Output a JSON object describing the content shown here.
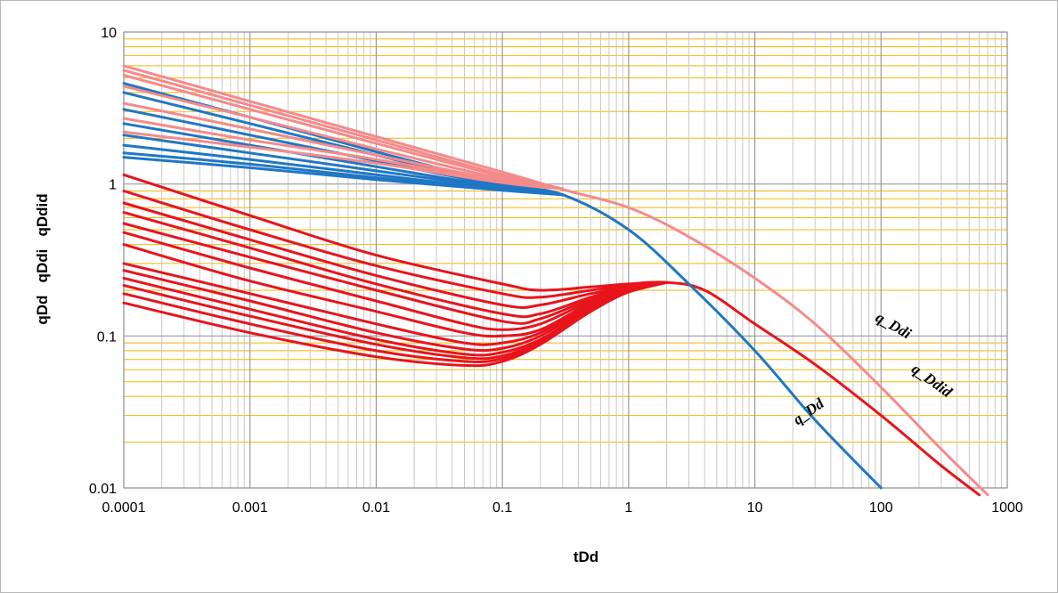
{
  "chart_data": {
    "type": "line",
    "title": "",
    "xlabel": "tDd",
    "ylabel": "qDd   qDdi   qDdid",
    "xscale": "log",
    "yscale": "log",
    "xlim": [
      0.0001,
      1000
    ],
    "ylim": [
      0.01,
      10
    ],
    "grid": true,
    "legend": "none",
    "x_tick_labels": [
      "0.0001",
      "0.001",
      "0.01",
      "0.1",
      "1",
      "10",
      "100",
      "1000"
    ],
    "y_tick_labels": [
      "0.01",
      "0.1",
      "1",
      "10"
    ],
    "annotations": [
      {
        "text": "q_Ddi",
        "x": 120,
        "y": 0.11
      },
      {
        "text": "q_Ddid",
        "x": 240,
        "y": 0.048
      },
      {
        "text": "q_Dd",
        "x": 28,
        "y": 0.03
      }
    ],
    "colors": {
      "q_Dd": "#1f77c4",
      "q_Ddi": "#f58a8a",
      "q_Ddid": "#e8141c",
      "grid_major": "#9a9a9a",
      "grid_minor_x": "#c8c8c8",
      "grid_minor_y": "#f2b800"
    },
    "series": [
      {
        "group": "q_Ddi",
        "x": [
          0.0001,
          0.001,
          0.01,
          0.1,
          0.3,
          1,
          3,
          10,
          30,
          100,
          300,
          700
        ],
        "y": [
          6.0,
          3.5,
          2.05,
          1.2,
          0.92,
          0.7,
          0.45,
          0.24,
          0.12,
          0.046,
          0.018,
          0.009
        ]
      },
      {
        "group": "q_Ddi",
        "x": [
          0.0001,
          0.001,
          0.01,
          0.1,
          0.3
        ],
        "y": [
          5.6,
          3.3,
          1.95,
          1.15,
          0.93
        ]
      },
      {
        "group": "q_Ddi",
        "x": [
          0.0001,
          0.001,
          0.01,
          0.1,
          0.3
        ],
        "y": [
          5.2,
          3.1,
          1.85,
          1.12,
          0.93
        ]
      },
      {
        "group": "q_Ddi",
        "x": [
          0.0001,
          0.001,
          0.01,
          0.1,
          0.3
        ],
        "y": [
          4.4,
          2.75,
          1.7,
          1.08,
          0.93
        ]
      },
      {
        "group": "q_Ddi",
        "x": [
          0.0001,
          0.001,
          0.01,
          0.1,
          0.3
        ],
        "y": [
          3.4,
          2.3,
          1.55,
          1.05,
          0.93
        ]
      },
      {
        "group": "q_Ddi",
        "x": [
          0.0001,
          0.001,
          0.01,
          0.1,
          0.3
        ],
        "y": [
          2.7,
          1.95,
          1.45,
          1.03,
          0.93
        ]
      },
      {
        "group": "q_Ddi",
        "x": [
          0.0001,
          0.001,
          0.01,
          0.1,
          0.3
        ],
        "y": [
          2.2,
          1.75,
          1.37,
          1.02,
          0.93
        ]
      },
      {
        "group": "q_Dd",
        "x": [
          0.0001,
          0.001,
          0.01,
          0.1,
          0.3,
          1,
          3,
          10,
          30,
          100
        ],
        "y": [
          4.6,
          2.75,
          1.63,
          1.0,
          0.85,
          0.5,
          0.22,
          0.08,
          0.028,
          0.01
        ]
      },
      {
        "group": "q_Dd",
        "x": [
          0.0001,
          0.001,
          0.01,
          0.1,
          0.3
        ],
        "y": [
          4.0,
          2.5,
          1.55,
          0.98,
          0.85
        ]
      },
      {
        "group": "q_Dd",
        "x": [
          0.0001,
          0.001,
          0.01,
          0.1,
          0.3
        ],
        "y": [
          3.1,
          2.1,
          1.42,
          0.97,
          0.85
        ]
      },
      {
        "group": "q_Dd",
        "x": [
          0.0001,
          0.001,
          0.01,
          0.1,
          0.3
        ],
        "y": [
          2.5,
          1.8,
          1.3,
          0.95,
          0.85
        ]
      },
      {
        "group": "q_Dd",
        "x": [
          0.0001,
          0.001,
          0.01,
          0.1,
          0.3
        ],
        "y": [
          2.1,
          1.6,
          1.22,
          0.94,
          0.85
        ]
      },
      {
        "group": "q_Dd",
        "x": [
          0.0001,
          0.001,
          0.01,
          0.1,
          0.3
        ],
        "y": [
          1.8,
          1.45,
          1.15,
          0.92,
          0.85
        ]
      },
      {
        "group": "q_Dd",
        "x": [
          0.0001,
          0.001,
          0.01,
          0.1,
          0.3
        ],
        "y": [
          1.6,
          1.35,
          1.1,
          0.92,
          0.85
        ]
      },
      {
        "group": "q_Dd",
        "x": [
          0.0001,
          0.001,
          0.01,
          0.1,
          0.3
        ],
        "y": [
          1.5,
          1.28,
          1.07,
          0.91,
          0.85
        ]
      },
      {
        "group": "q_Ddid",
        "x": [
          0.0001,
          0.001,
          0.01,
          0.1,
          0.2,
          0.5,
          1,
          2,
          4,
          10,
          30,
          100,
          300,
          600
        ],
        "y": [
          1.15,
          0.62,
          0.34,
          0.22,
          0.2,
          0.21,
          0.22,
          0.225,
          0.2,
          0.12,
          0.065,
          0.03,
          0.014,
          0.009
        ]
      },
      {
        "group": "q_Ddid",
        "x": [
          0.0001,
          0.001,
          0.01,
          0.1,
          0.2,
          0.5,
          1,
          2
        ],
        "y": [
          0.9,
          0.5,
          0.29,
          0.19,
          0.18,
          0.2,
          0.215,
          0.225
        ]
      },
      {
        "group": "q_Ddid",
        "x": [
          0.0001,
          0.001,
          0.01,
          0.1,
          0.2,
          0.5,
          1,
          2
        ],
        "y": [
          0.75,
          0.43,
          0.25,
          0.16,
          0.16,
          0.19,
          0.21,
          0.225
        ]
      },
      {
        "group": "q_Ddid",
        "x": [
          0.0001,
          0.001,
          0.01,
          0.1,
          0.2,
          0.5,
          1,
          2
        ],
        "y": [
          0.65,
          0.38,
          0.22,
          0.14,
          0.14,
          0.18,
          0.21,
          0.225
        ]
      },
      {
        "group": "q_Ddid",
        "x": [
          0.0001,
          0.001,
          0.01,
          0.1,
          0.2,
          0.5,
          1,
          2
        ],
        "y": [
          0.55,
          0.33,
          0.2,
          0.125,
          0.13,
          0.175,
          0.205,
          0.225
        ]
      },
      {
        "group": "q_Ddid",
        "x": [
          0.0001,
          0.001,
          0.01,
          0.05,
          0.1,
          0.2,
          0.5,
          1,
          2
        ],
        "y": [
          0.48,
          0.28,
          0.17,
          0.12,
          0.11,
          0.12,
          0.17,
          0.205,
          0.225
        ]
      },
      {
        "group": "q_Ddid",
        "x": [
          0.0001,
          0.001,
          0.01,
          0.05,
          0.1,
          0.2,
          0.5,
          1,
          2
        ],
        "y": [
          0.4,
          0.23,
          0.145,
          0.105,
          0.1,
          0.11,
          0.165,
          0.2,
          0.225
        ]
      },
      {
        "group": "q_Ddid",
        "x": [
          0.0001,
          0.001,
          0.01,
          0.05,
          0.1,
          0.2,
          0.5,
          1,
          2
        ],
        "y": [
          0.3,
          0.19,
          0.12,
          0.09,
          0.09,
          0.105,
          0.16,
          0.2,
          0.225
        ]
      },
      {
        "group": "q_Ddid",
        "x": [
          0.0001,
          0.001,
          0.01,
          0.05,
          0.1,
          0.2,
          0.5,
          1,
          2
        ],
        "y": [
          0.27,
          0.17,
          0.105,
          0.082,
          0.083,
          0.1,
          0.155,
          0.195,
          0.225
        ]
      },
      {
        "group": "q_Ddid",
        "x": [
          0.0001,
          0.001,
          0.01,
          0.05,
          0.1,
          0.2,
          0.5,
          1,
          2
        ],
        "y": [
          0.24,
          0.15,
          0.095,
          0.076,
          0.078,
          0.095,
          0.15,
          0.195,
          0.225
        ]
      },
      {
        "group": "q_Ddid",
        "x": [
          0.0001,
          0.001,
          0.01,
          0.05,
          0.1,
          0.2,
          0.5,
          1,
          2
        ],
        "y": [
          0.215,
          0.135,
          0.088,
          0.072,
          0.074,
          0.092,
          0.15,
          0.195,
          0.225
        ]
      },
      {
        "group": "q_Ddid",
        "x": [
          0.0001,
          0.001,
          0.01,
          0.05,
          0.1,
          0.2,
          0.5,
          1,
          2
        ],
        "y": [
          0.19,
          0.12,
          0.08,
          0.068,
          0.071,
          0.09,
          0.145,
          0.195,
          0.225
        ]
      },
      {
        "group": "q_Ddid",
        "x": [
          0.0001,
          0.001,
          0.01,
          0.05,
          0.1,
          0.2,
          0.5,
          1,
          2
        ],
        "y": [
          0.165,
          0.105,
          0.073,
          0.064,
          0.068,
          0.088,
          0.145,
          0.195,
          0.225
        ]
      }
    ]
  }
}
